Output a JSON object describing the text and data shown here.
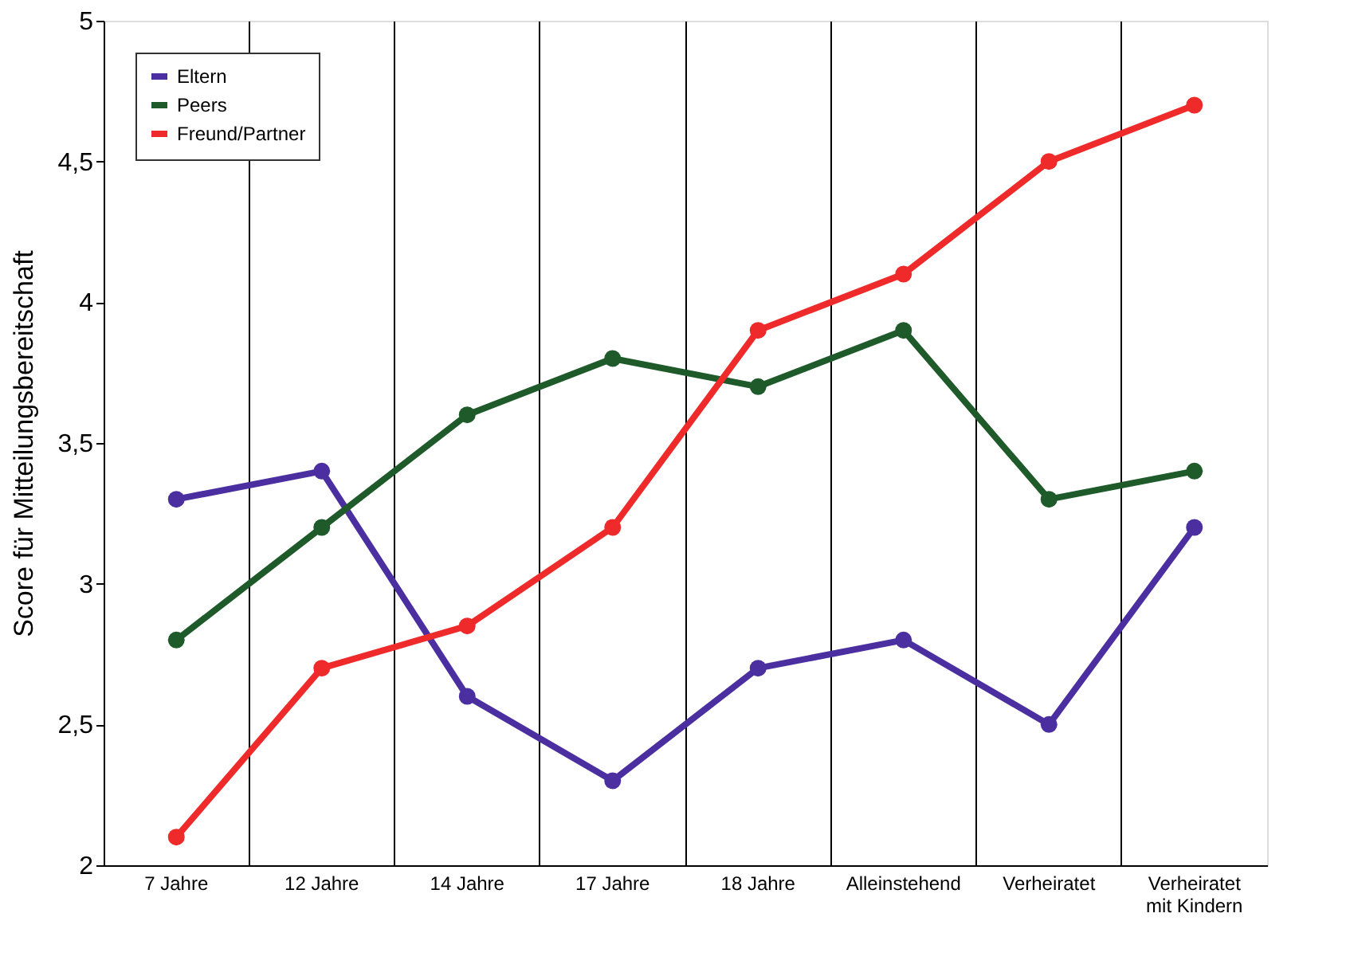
{
  "chart_data": {
    "type": "line",
    "ylabel": "Score für Mitteilungsbereitschaft",
    "categories": [
      "7 Jahre",
      "12 Jahre",
      "14 Jahre",
      "17 Jahre",
      "18 Jahre",
      "Alleinstehend",
      "Verheiratet",
      "Verheiratet\nmit Kindern"
    ],
    "series": [
      {
        "name": "Eltern",
        "color": "#4b2fa0",
        "values": [
          3.3,
          3.4,
          2.6,
          2.3,
          2.7,
          2.8,
          2.5,
          3.2
        ]
      },
      {
        "name": "Peers",
        "color": "#1e5a2a",
        "values": [
          2.8,
          3.2,
          3.6,
          3.8,
          3.7,
          3.9,
          3.3,
          3.4
        ]
      },
      {
        "name": "Freund/Partner",
        "color": "#ee2a2a",
        "values": [
          2.1,
          2.7,
          2.85,
          3.2,
          3.9,
          4.1,
          4.5,
          4.7
        ]
      }
    ],
    "ylim": [
      2,
      5
    ],
    "yticks": [
      2,
      {
        "value": 2.5,
        "label": "2,5"
      },
      3,
      {
        "value": 3.5,
        "label": "3,5"
      },
      4,
      {
        "value": 4.5,
        "label": "4,5"
      },
      5
    ],
    "grid": "x",
    "legend": "top left",
    "marker": "circle",
    "line_style": "solid"
  }
}
